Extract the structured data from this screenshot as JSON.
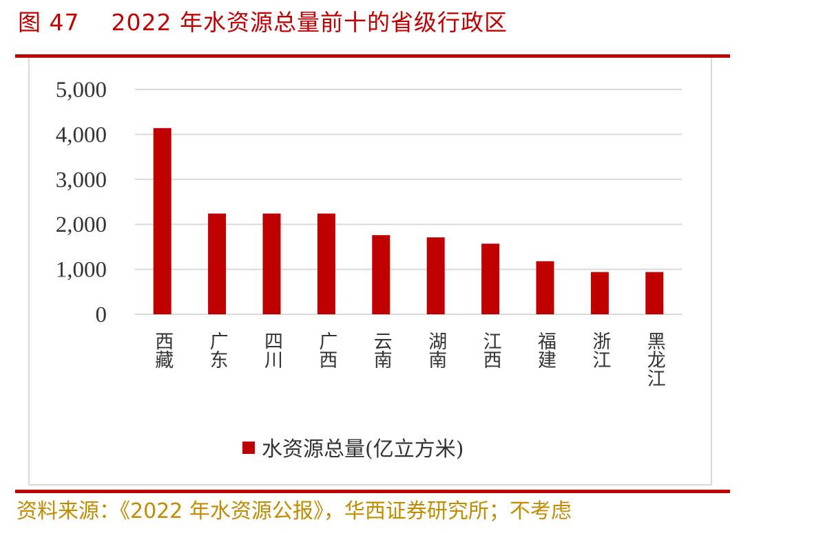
{
  "figure": {
    "number": "图 47",
    "title": "2022 年水资源总量前十的省级行政区"
  },
  "source": "资料来源：《2022 年水资源公报》，华西证券研究所；不考虑",
  "colors": {
    "accent": "#c00000",
    "bar": "#c00000",
    "source_text": "#c28b00",
    "grid": "#d9d9d9"
  },
  "chart_data": {
    "type": "bar",
    "categories": [
      "西藏",
      "广东",
      "四川",
      "广西",
      "云南",
      "湖南",
      "江西",
      "福建",
      "浙江",
      "黑龙江"
    ],
    "series": [
      {
        "name": "水资源总量(亿立方米)",
        "values": [
          4140,
          2240,
          2240,
          2240,
          1760,
          1710,
          1570,
          1180,
          940,
          940
        ]
      }
    ],
    "ylim": [
      0,
      5000
    ],
    "yticks": [
      "0",
      "1,000",
      "2,000",
      "3,000",
      "4,000",
      "5,000"
    ],
    "ytick_values": [
      0,
      1000,
      2000,
      3000,
      4000,
      5000
    ],
    "grid": true,
    "legend": "bottom"
  }
}
